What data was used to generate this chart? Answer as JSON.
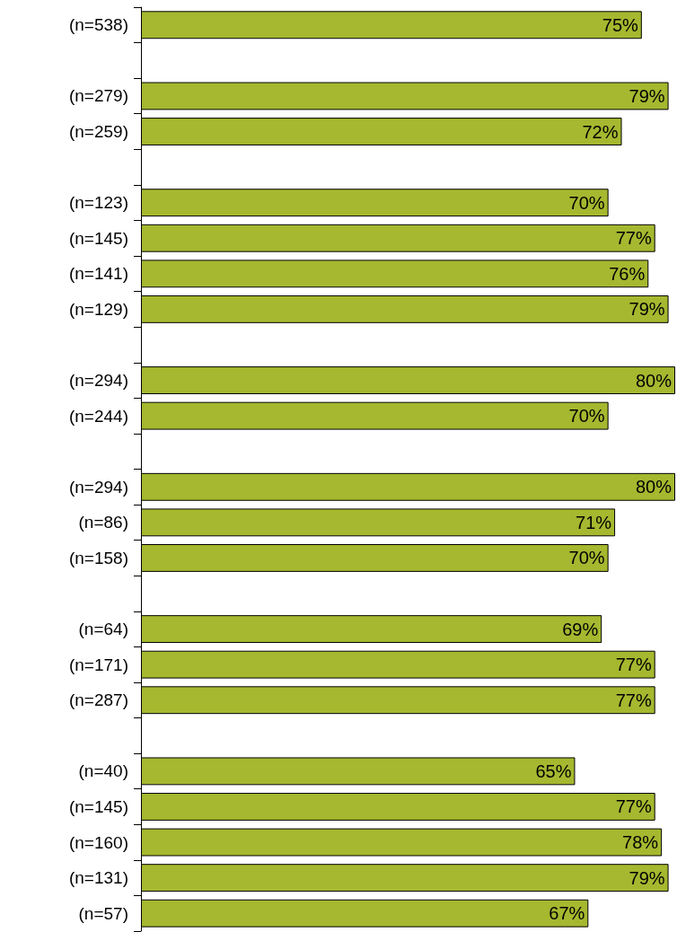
{
  "chart_data": {
    "type": "bar",
    "orientation": "horizontal",
    "categories": [
      "(n=538)",
      null,
      "(n=279)",
      "(n=259)",
      null,
      "(n=123)",
      "(n=145)",
      "(n=141)",
      "(n=129)",
      null,
      "(n=294)",
      "(n=244)",
      null,
      "(n=294)",
      "(n=86)",
      "(n=158)",
      null,
      "(n=64)",
      "(n=171)",
      "(n=287)",
      null,
      "(n=40)",
      "(n=145)",
      "(n=160)",
      "(n=131)",
      "(n=57)"
    ],
    "values": [
      75,
      null,
      79,
      72,
      null,
      70,
      77,
      76,
      79,
      null,
      80,
      70,
      null,
      80,
      71,
      70,
      null,
      69,
      77,
      77,
      null,
      65,
      77,
      78,
      79,
      67
    ],
    "value_labels": [
      "75%",
      null,
      "79%",
      "72%",
      null,
      "70%",
      "77%",
      "76%",
      "79%",
      null,
      "80%",
      "70%",
      null,
      "80%",
      "71%",
      "70%",
      null,
      "69%",
      "77%",
      "77%",
      null,
      "65%",
      "77%",
      "78%",
      "79%",
      "67%"
    ],
    "color": "#a5b82f",
    "xlim": [
      0,
      80
    ],
    "tick_labels": "y",
    "grid": false
  }
}
